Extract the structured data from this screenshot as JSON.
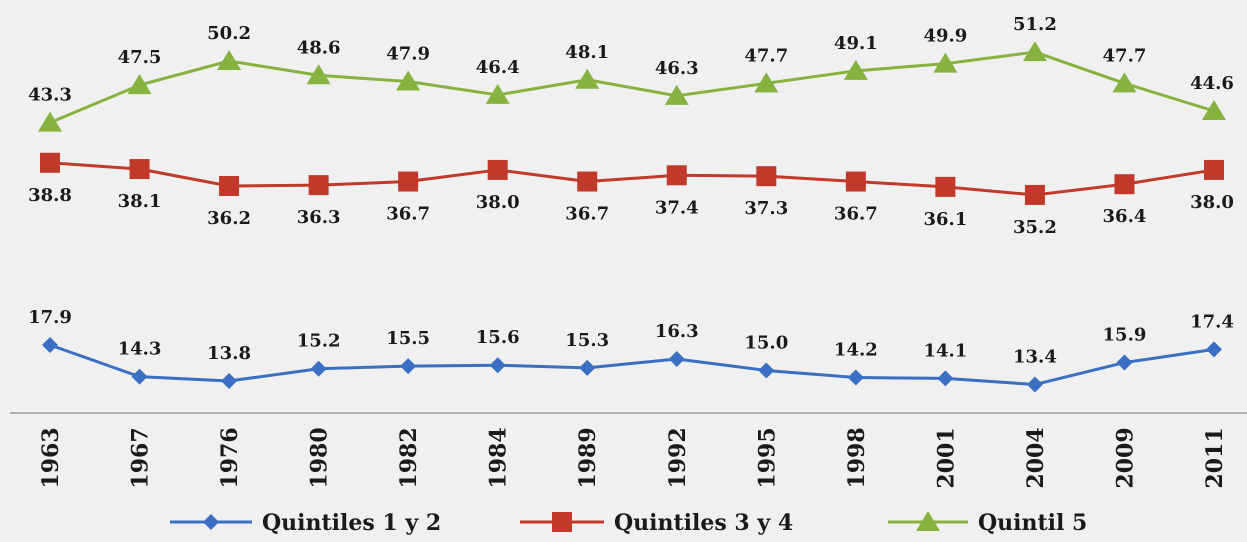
{
  "chart_data": {
    "type": "line",
    "x": [
      "1963",
      "1967",
      "1976",
      "1980",
      "1982",
      "1984",
      "1989",
      "1992",
      "1995",
      "1998",
      "2001",
      "2004",
      "2009",
      "2011"
    ],
    "series": [
      {
        "name": "Quintiles 1 y 2",
        "color": "#3a6fc4",
        "marker": "diamond",
        "values": [
          17.9,
          14.3,
          13.8,
          15.2,
          15.5,
          15.6,
          15.3,
          16.3,
          15.0,
          14.2,
          14.1,
          13.4,
          15.9,
          17.4
        ]
      },
      {
        "name": "Quintiles 3 y 4",
        "color": "#c0392b",
        "marker": "square",
        "values": [
          38.8,
          38.1,
          36.2,
          36.3,
          36.7,
          38.0,
          36.7,
          37.4,
          37.3,
          36.7,
          36.1,
          35.2,
          36.4,
          38.0
        ]
      },
      {
        "name": "Quintil 5",
        "color": "#86b33f",
        "marker": "triangle",
        "values": [
          43.3,
          47.5,
          50.2,
          48.6,
          47.9,
          46.4,
          48.1,
          46.3,
          47.7,
          49.1,
          49.9,
          51.2,
          47.7,
          44.6
        ]
      }
    ],
    "title": "",
    "xlabel": "",
    "ylabel": "",
    "grid": false,
    "legend_position": "bottom"
  }
}
